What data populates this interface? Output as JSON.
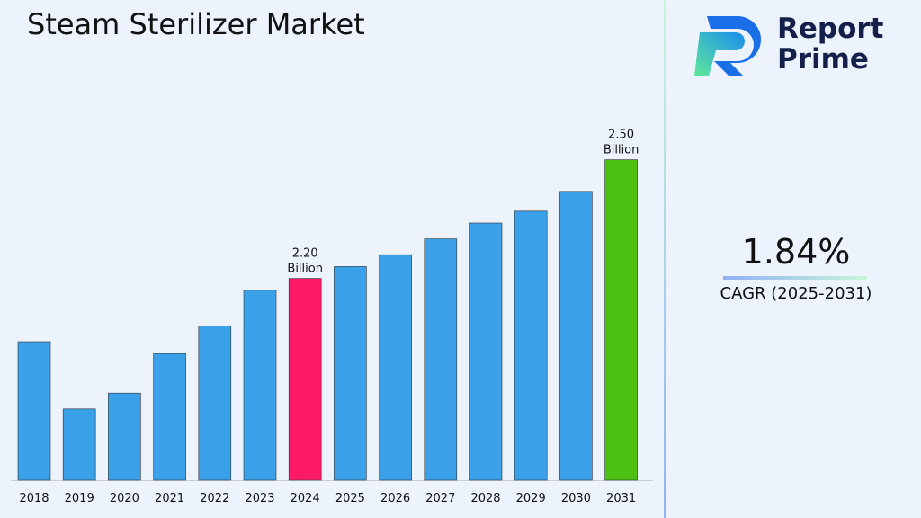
{
  "chart_data": {
    "type": "bar",
    "title": "Steam Sterilizer Market",
    "categories": [
      "2018",
      "2019",
      "2020",
      "2021",
      "2022",
      "2023",
      "2024",
      "2025",
      "2026",
      "2027",
      "2028",
      "2029",
      "2030",
      "2031"
    ],
    "values": [
      2.04,
      1.87,
      1.91,
      2.01,
      2.08,
      2.17,
      2.2,
      2.23,
      2.26,
      2.3,
      2.34,
      2.37,
      2.42,
      2.5
    ],
    "unit": "Billion",
    "data_labels": [
      {
        "category": "2024",
        "line1": "2.20",
        "line2": "Billion"
      },
      {
        "category": "2031",
        "line1": "2.50",
        "line2": "Billion"
      }
    ],
    "colors": {
      "default": "#3aa0e8",
      "2024": "#fe1a66",
      "2031": "#4cc114"
    },
    "grid": false
  },
  "logo": {
    "line1": "Report",
    "line2": "Prime"
  },
  "cagr": {
    "value": "1.84%",
    "label": "CAGR (2025-2031)"
  }
}
